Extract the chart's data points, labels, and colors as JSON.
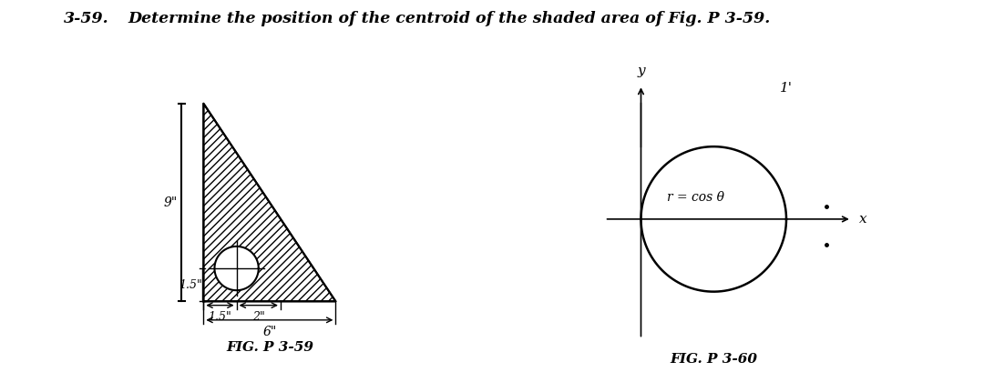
{
  "title_bold": "3-59.",
  "title_rest": "  Determine the position of the centroid of the shaded area of Fig. P 3-59.",
  "fig_label_left": "FIG. P 3-59",
  "fig_label_right": "FIG. P 3-60",
  "bg_color": "#ffffff",
  "dim_labels": {
    "nine": "9\"",
    "one_five_vert": "1.5\"",
    "one_five_horiz": "1.5\"",
    "two": "2\"",
    "six": "6\""
  },
  "polar_label": "r = cos θ",
  "polar_dim_label": "1'",
  "x_label": "x",
  "y_label": "y",
  "dot1": [
    2.55,
    0.18
  ],
  "dot2": [
    2.55,
    -0.35
  ]
}
